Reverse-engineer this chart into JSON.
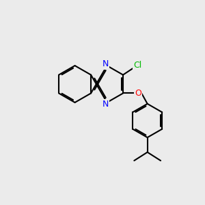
{
  "bg_color": "#ebebeb",
  "bond_color": "#000000",
  "bond_lw": 1.5,
  "N_color": "#0000ff",
  "O_color": "#ff0000",
  "Cl_color": "#00bb00",
  "font_size": 9,
  "label_fontsize": 9,
  "xlim": [
    0,
    300
  ],
  "ylim": [
    0,
    300
  ]
}
